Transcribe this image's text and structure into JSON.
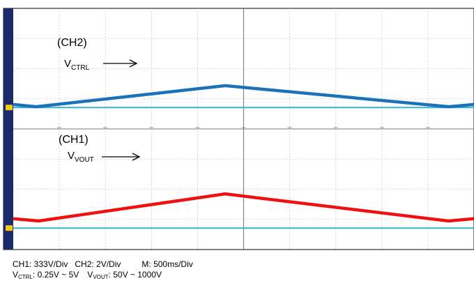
{
  "chart_data": {
    "type": "line",
    "grid": true,
    "x_divisions": 10,
    "y_divisions": 8,
    "time_per_div": "500ms/Div",
    "colors": {
      "ch2": "#1b72b8",
      "ch1": "#ee1111",
      "ground": "#37b2cf",
      "screen_edge": "#1a2a6a",
      "grid": "#bbbbbb"
    },
    "series": [
      {
        "channel": "CH2",
        "x_div": [
          0,
          0.5,
          4.6,
          9.45,
          10
        ],
        "y_div": [
          0.7,
          0.55,
          1.95,
          0.55,
          0.7
        ]
      },
      {
        "channel": "CH1",
        "x_div": [
          0,
          0.55,
          4.6,
          9.45,
          10
        ],
        "y_div": [
          0.75,
          0.6,
          2.4,
          0.6,
          0.75
        ]
      }
    ],
    "ground_levels_div": [
      0.5,
      0.5
    ]
  },
  "annotations": {
    "ch2_label": "(CH2)",
    "ch2_var_main": "V",
    "ch2_var_sub": "CTRL",
    "ch1_label": "(CH1)",
    "ch1_var_main": "V",
    "ch1_var_sub": "VOUT"
  },
  "footer": {
    "ch1_scale": "CH1: 333V/Div",
    "ch2_scale": "CH2: 2V/Div",
    "time_scale": "M: 500ms/Div",
    "vctrl_main": "V",
    "vctrl_sub": "CTRL",
    "vctrl_range": ": 0.25V ~ 5V",
    "vout_main": "V",
    "vout_sub": "VOUT",
    "vout_range": ": 50V ~ 1000V"
  }
}
